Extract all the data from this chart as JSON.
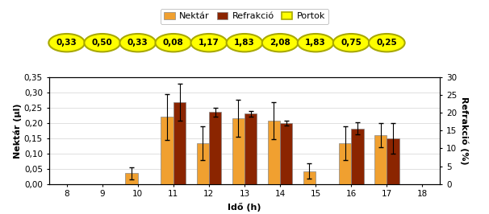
{
  "hours": [
    8,
    9,
    10,
    11,
    12,
    13,
    14,
    15,
    16,
    17,
    18
  ],
  "nektar_values": [
    null,
    null,
    0.035,
    0.22,
    0.133,
    0.215,
    0.207,
    0.042,
    0.133,
    0.16,
    null
  ],
  "nektar_errors": [
    null,
    null,
    0.02,
    0.075,
    0.055,
    0.06,
    0.06,
    0.025,
    0.055,
    0.04,
    null
  ],
  "refrakció_values": [
    null,
    null,
    null,
    0.268,
    0.235,
    0.23,
    0.2,
    null,
    0.182,
    0.15,
    null
  ],
  "refrakció_errors": [
    null,
    null,
    null,
    0.06,
    0.015,
    0.01,
    0.008,
    null,
    0.02,
    0.05,
    null
  ],
  "portok_hours": [
    8,
    9,
    10,
    11,
    12,
    13,
    14,
    15,
    16,
    17
  ],
  "portok_labels": [
    "0,33",
    "0,50",
    "0,33",
    "0,08",
    "1,17",
    "1,83",
    "2,08",
    "1,83",
    "0,75",
    "0,25"
  ],
  "nektar_color": "#F0A030",
  "refrakció_color": "#8B2500",
  "portok_fill": "#FFFF00",
  "portok_edge": "#A8A800",
  "ylabel_left": "Nektár (µl)",
  "ylabel_right": "Refrakció (%)",
  "xlabel": "Idő (h)",
  "xlim": [
    7.5,
    18.5
  ],
  "ylim_left": [
    0,
    0.35
  ],
  "ylim_right": [
    0,
    30
  ],
  "yticks_left": [
    0.0,
    0.05,
    0.1,
    0.15,
    0.2,
    0.25,
    0.3,
    0.35
  ],
  "ytick_labels_left": [
    "0,00",
    "0,05",
    "0,10",
    "0,15",
    "0,20",
    "0,25",
    "0,30",
    "0,35"
  ],
  "yticks_right": [
    0,
    5,
    10,
    15,
    20,
    25,
    30
  ],
  "xticks": [
    8,
    9,
    10,
    11,
    12,
    13,
    14,
    15,
    16,
    17,
    18
  ],
  "bar_width": 0.35,
  "legend_labels": [
    "Nektár",
    "Refrakció",
    "Portok"
  ],
  "axis_fontsize": 8,
  "tick_fontsize": 7.5,
  "legend_fontsize": 8,
  "ellipse_fontsize": 7.5
}
